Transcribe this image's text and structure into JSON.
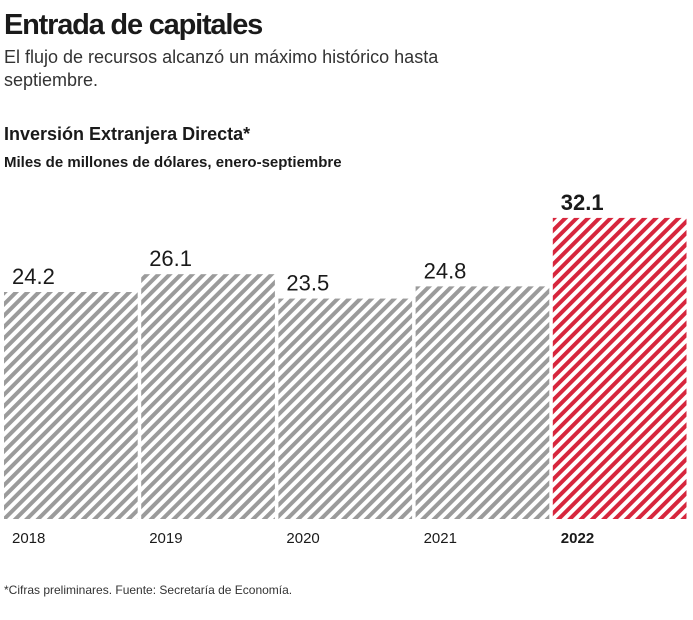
{
  "title": "Entrada de capitales",
  "subtitle": "El flujo de recursos alcanzó un máximo histórico hasta septiembre.",
  "chart_data": {
    "type": "bar",
    "title": "Inversión Extranjera Directa*",
    "subtitle": "Miles de millones de dólares, enero-septiembre",
    "categories": [
      "2018",
      "2019",
      "2020",
      "2021",
      "2022"
    ],
    "values": [
      24.2,
      26.1,
      23.5,
      24.8,
      32.1
    ],
    "colors": [
      "#9b9b9b",
      "#9b9b9b",
      "#9b9b9b",
      "#9b9b9b",
      "#d7263d"
    ]
  },
  "footnote": "*Cifras preliminares. Fuente: Secretaría de Economía."
}
